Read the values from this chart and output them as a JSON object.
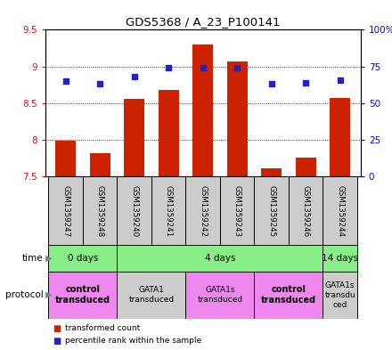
{
  "title": "GDS5368 / A_23_P100141",
  "samples": [
    "GSM1359247",
    "GSM1359248",
    "GSM1359240",
    "GSM1359241",
    "GSM1359242",
    "GSM1359243",
    "GSM1359245",
    "GSM1359246",
    "GSM1359244"
  ],
  "transformed_count": [
    7.99,
    7.82,
    8.56,
    8.68,
    9.3,
    9.07,
    7.62,
    7.76,
    8.57
  ],
  "percentile_rank": [
    65,
    63,
    68,
    74,
    74,
    74,
    63,
    64,
    66
  ],
  "bar_bottom": 7.5,
  "ylim_left": [
    7.5,
    9.5
  ],
  "ylim_right": [
    0,
    100
  ],
  "yticks_left": [
    7.5,
    8.0,
    8.5,
    9.0,
    9.5
  ],
  "ytick_labels_left": [
    "7.5",
    "8",
    "8.5",
    "9",
    "9.5"
  ],
  "yticks_right": [
    0,
    25,
    50,
    75,
    100
  ],
  "ytick_labels_right": [
    "0",
    "25",
    "50",
    "75",
    "100%"
  ],
  "bar_color": "#cc2200",
  "dot_color": "#2222cc",
  "background_color": "#ffffff",
  "time_groups": [
    {
      "label": "0 days",
      "start": 0,
      "end": 2,
      "color": "#88ee88"
    },
    {
      "label": "4 days",
      "start": 2,
      "end": 8,
      "color": "#88ee88"
    },
    {
      "label": "14 days",
      "start": 8,
      "end": 9,
      "color": "#88ee88"
    }
  ],
  "protocol_groups": [
    {
      "label": "control\ntransduced",
      "start": 0,
      "end": 2,
      "color": "#ee88ee",
      "bold": true
    },
    {
      "label": "GATA1\ntransduced",
      "start": 2,
      "end": 4,
      "color": "#cccccc",
      "bold": false
    },
    {
      "label": "GATA1s\ntransduced",
      "start": 4,
      "end": 6,
      "color": "#ee88ee",
      "bold": false
    },
    {
      "label": "control\ntransduced",
      "start": 6,
      "end": 8,
      "color": "#ee88ee",
      "bold": true
    },
    {
      "label": "GATA1s\ntransdu\nced",
      "start": 8,
      "end": 9,
      "color": "#cccccc",
      "bold": false
    }
  ],
  "legend_items": [
    {
      "label": "transformed count",
      "color": "#cc2200"
    },
    {
      "label": "percentile rank within the sample",
      "color": "#2222cc"
    }
  ]
}
